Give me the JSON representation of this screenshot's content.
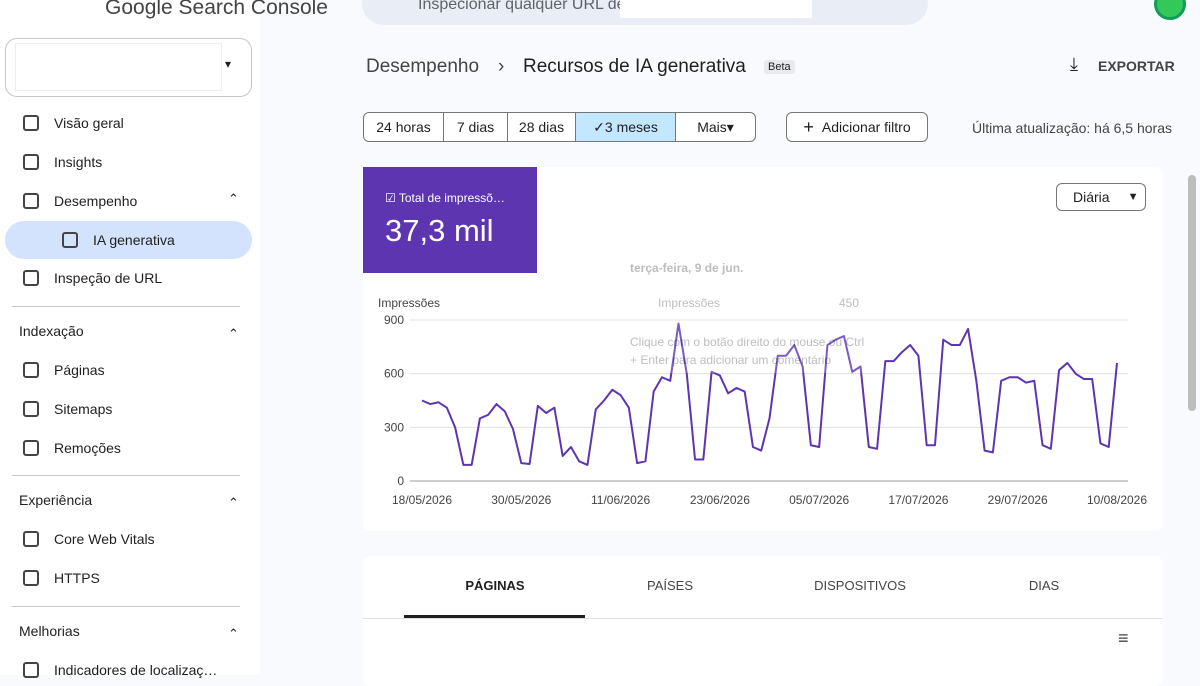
{
  "header": {
    "product": "Google Search Console",
    "search_placeholder": "Inspecionar qualquer URL de"
  },
  "sidebar": {
    "nav": [
      "Visão geral",
      "Insights",
      "Desempenho",
      "IA generativa",
      "Inspeção de URL"
    ],
    "sections": [
      {
        "title": "Indexação",
        "items": [
          "Páginas",
          "Sitemaps",
          "Remoções"
        ]
      },
      {
        "title": "Experiência",
        "items": [
          "Core Web Vitals",
          "HTTPS"
        ]
      },
      {
        "title": "Melhorias",
        "items": [
          "Indicadores de localizaç…"
        ]
      }
    ]
  },
  "breadcrumb": {
    "parent": "Desempenho",
    "current": "Recursos de IA generativa",
    "badge": "Beta"
  },
  "export": "EXPORTAR",
  "filters": {
    "ranges": [
      "24 horas",
      "7 dias",
      "28 dias",
      "3 meses",
      "Mais"
    ],
    "add": "Adicionar filtro",
    "updated": "Última atualização: há 6,5 horas"
  },
  "summary": {
    "label": "Total de impressõ…",
    "value": "37,3 mil"
  },
  "granularity": "Diária",
  "tooltip": {
    "date": "terça-feira, 9 de jun.",
    "series": "Impressões",
    "value": 450,
    "hint": "Clique com o botão direito do mouse ou Ctrl + Enter para adicionar um comentário"
  },
  "tabs": [
    "PÁGINAS",
    "PAÍSES",
    "DISPOSITIVOS",
    "DIAS"
  ],
  "chart_data": {
    "type": "line",
    "y_label": "Impressões",
    "categories": [
      "18/05/2026",
      null,
      null,
      null,
      null,
      null,
      null,
      null,
      null,
      null,
      null,
      null,
      "30/05/2026",
      null,
      null,
      null,
      null,
      null,
      null,
      null,
      null,
      null,
      null,
      null,
      "11/06/2026",
      null,
      null,
      null,
      null,
      null,
      null,
      null,
      null,
      null,
      null,
      null,
      "23/06/2026",
      null,
      null,
      null,
      null,
      null,
      null,
      null,
      null,
      null,
      null,
      null,
      "05/07/2026",
      null,
      null,
      null,
      null,
      null,
      null,
      null,
      null,
      null,
      null,
      null,
      "17/07/2026",
      null,
      null,
      null,
      null,
      null,
      null,
      null,
      null,
      null,
      null,
      null,
      "29/07/2026",
      null,
      null,
      null,
      null,
      null,
      null,
      null,
      null,
      null,
      null,
      null,
      "10/08/2026"
    ],
    "series": [
      {
        "name": "Impressões",
        "color": "#5e35b1",
        "values": [
          450,
          430,
          440,
          410,
          300,
          90,
          90,
          350,
          370,
          430,
          390,
          290,
          100,
          95,
          420,
          380,
          410,
          140,
          190,
          110,
          90,
          400,
          450,
          510,
          480,
          410,
          100,
          110,
          500,
          580,
          560,
          880,
          600,
          120,
          120,
          610,
          590,
          490,
          520,
          500,
          190,
          170,
          350,
          700,
          700,
          760,
          640,
          200,
          190,
          760,
          790,
          810,
          610,
          640,
          190,
          180,
          670,
          670,
          720,
          760,
          700,
          200,
          200,
          790,
          760,
          760,
          850,
          560,
          170,
          160,
          560,
          580,
          580,
          550,
          560,
          200,
          180,
          620,
          660,
          600,
          570,
          570,
          210,
          190,
          660
        ]
      }
    ],
    "ylim": [
      0,
      900
    ],
    "yticks": [
      0,
      300,
      600,
      900
    ],
    "grid": true
  }
}
